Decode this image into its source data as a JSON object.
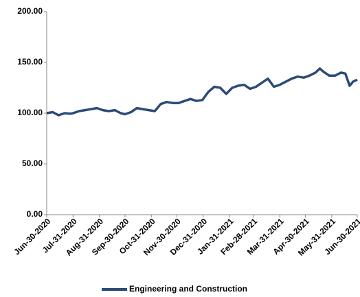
{
  "chart_data": {
    "type": "line",
    "x": [
      "2020-06-30",
      "2020-07-07",
      "2020-07-14",
      "2020-07-21",
      "2020-07-28",
      "2020-07-31",
      "2020-08-07",
      "2020-08-14",
      "2020-08-21",
      "2020-08-28",
      "2020-09-04",
      "2020-09-11",
      "2020-09-18",
      "2020-09-25",
      "2020-09-30",
      "2020-10-07",
      "2020-10-14",
      "2020-10-21",
      "2020-10-28",
      "2020-11-04",
      "2020-11-11",
      "2020-11-18",
      "2020-11-25",
      "2020-12-02",
      "2020-12-09",
      "2020-12-16",
      "2020-12-23",
      "2020-12-30",
      "2021-01-06",
      "2021-01-13",
      "2021-01-20",
      "2021-01-27",
      "2021-02-03",
      "2021-02-10",
      "2021-02-17",
      "2021-02-24",
      "2021-03-03",
      "2021-03-10",
      "2021-03-17",
      "2021-03-24",
      "2021-03-31",
      "2021-04-07",
      "2021-04-14",
      "2021-04-21",
      "2021-04-28",
      "2021-05-05",
      "2021-05-12",
      "2021-05-17",
      "2021-05-21",
      "2021-05-28",
      "2021-06-04",
      "2021-06-11",
      "2021-06-16",
      "2021-06-21",
      "2021-06-25",
      "2021-06-30"
    ],
    "series": [
      {
        "name": "Engineering and Construction",
        "color": "#2b4a77",
        "values": [
          100,
          101,
          98,
          100,
          99.5,
          100,
          102,
          103,
          104,
          105,
          103,
          102,
          103,
          100,
          99,
          101,
          105,
          104,
          103,
          102,
          109,
          111,
          110,
          110,
          112,
          114,
          112,
          113,
          121,
          126,
          125,
          119,
          125,
          127,
          128,
          124,
          126,
          130,
          134,
          126,
          128,
          131,
          134,
          136,
          135,
          137,
          140,
          144,
          141,
          137,
          137,
          140,
          139,
          127,
          131,
          133
        ]
      }
    ],
    "xlim": [
      "2020-06-30",
      "2021-06-30"
    ],
    "xticks": [
      {
        "value": "2020-06-30",
        "label": "Jun-30-2020"
      },
      {
        "value": "2020-07-31",
        "label": "Jul-31-2020"
      },
      {
        "value": "2020-08-31",
        "label": "Aug-31-2020"
      },
      {
        "value": "2020-09-30",
        "label": "Sep-30-2020"
      },
      {
        "value": "2020-10-31",
        "label": "Oct-31-2020"
      },
      {
        "value": "2020-11-30",
        "label": "Nov-30-2020"
      },
      {
        "value": "2020-12-31",
        "label": "Dec-31-2020"
      },
      {
        "value": "2021-01-31",
        "label": "Jan-31-2021"
      },
      {
        "value": "2021-02-28",
        "label": "Feb-28-2021"
      },
      {
        "value": "2021-03-31",
        "label": "Mar-31-2021"
      },
      {
        "value": "2021-04-30",
        "label": "Apr-30-2021"
      },
      {
        "value": "2021-05-31",
        "label": "May-31-2021"
      },
      {
        "value": "2021-06-30",
        "label": "Jun-30-2021"
      }
    ],
    "ylim": [
      0,
      200
    ],
    "yticks": [
      {
        "value": 0,
        "label": "0.00"
      },
      {
        "value": 50,
        "label": "50.00"
      },
      {
        "value": 100,
        "label": "100.00"
      },
      {
        "value": 150,
        "label": "150.00"
      },
      {
        "value": 200,
        "label": "200.00"
      }
    ],
    "grid": false
  }
}
